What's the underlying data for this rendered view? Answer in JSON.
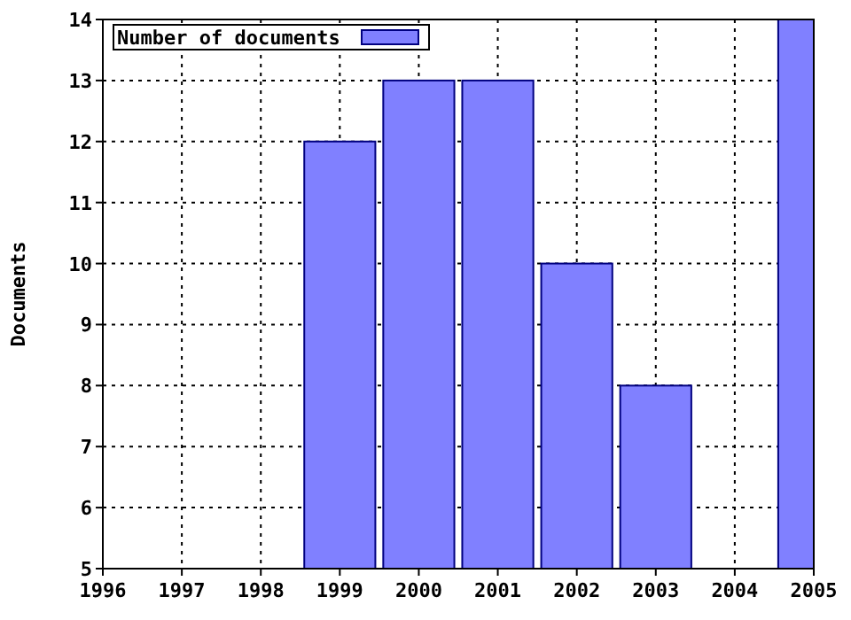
{
  "chart_data": {
    "type": "bar",
    "ylabel": "Documents",
    "x": [
      1999,
      2000,
      2001,
      2002,
      2003,
      2005
    ],
    "series": [
      {
        "name": "Number of documents",
        "color": "#8080ff",
        "values": [
          12,
          13,
          13,
          10,
          8,
          14
        ]
      }
    ],
    "xlim": [
      1996,
      2005
    ],
    "xticks": [
      1996,
      1997,
      1998,
      1999,
      2000,
      2001,
      2002,
      2003,
      2004,
      2005
    ],
    "ylim": [
      5,
      14
    ],
    "yticks": [
      5,
      6,
      7,
      8,
      9,
      10,
      11,
      12,
      13,
      14
    ],
    "grid": true,
    "legend": "top left"
  }
}
